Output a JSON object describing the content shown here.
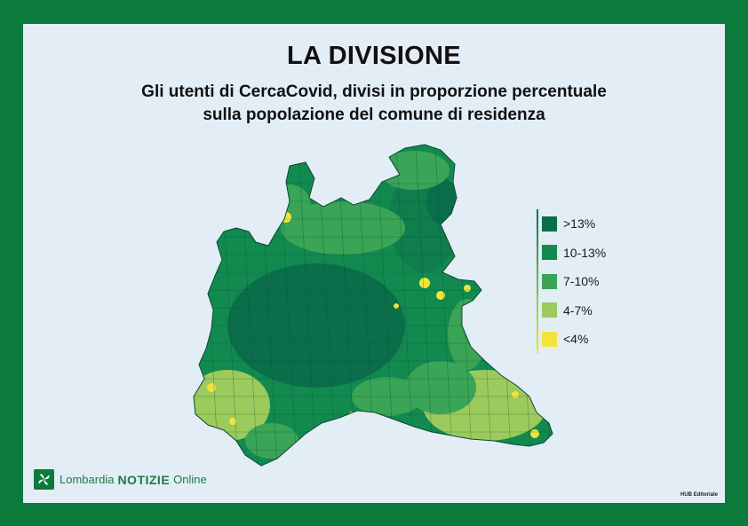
{
  "title": "LA DIVISIONE",
  "subtitle_line1": "Gli utenti di CercaCovid, divisi in proporzione percentuale",
  "subtitle_line2": "sulla popolazione del comune di residenza",
  "legend": [
    {
      "label": ">13%",
      "color": "#0b6e4a"
    },
    {
      "label": "10-13%",
      "color": "#128a4f"
    },
    {
      "label": "7-10%",
      "color": "#3aa457"
    },
    {
      "label": "4-7%",
      "color": "#9cca5c"
    },
    {
      "label": "<4%",
      "color": "#f2e43a"
    }
  ],
  "brand": {
    "name_prefix": "Lombardia",
    "name_bold": "NOTIZIE",
    "name_suffix": "Online",
    "logo_icon": "windmill-icon"
  },
  "credit": "HUB Editoriale"
}
